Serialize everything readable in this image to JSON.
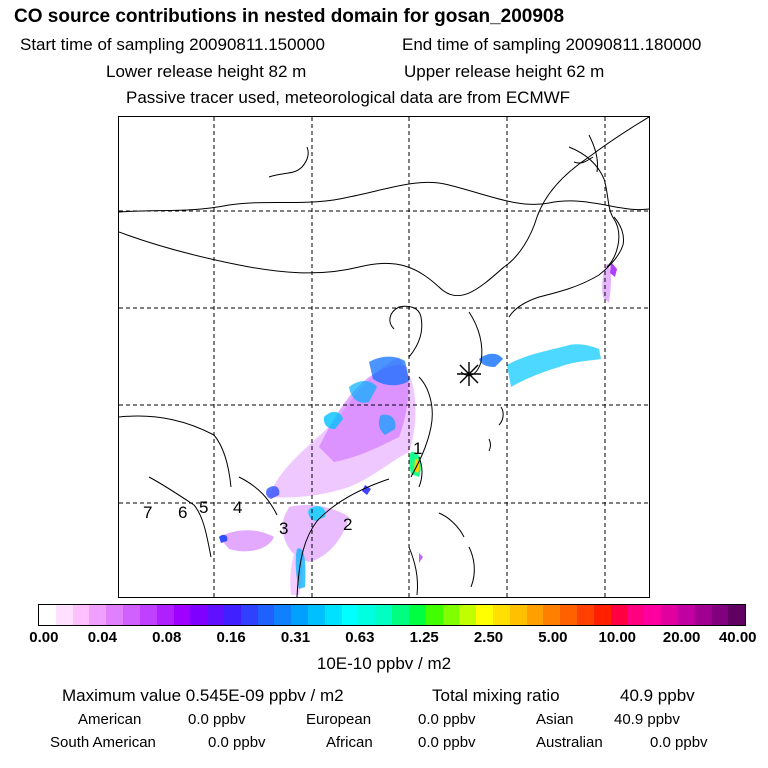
{
  "title": "CO  source contributions in nested domain for gosan_200908",
  "header": {
    "start_label": "Start time of sampling 20090811.150000",
    "end_label": "End time of sampling 20090811.180000",
    "lower_label": "Lower release height   82 m",
    "upper_label": "Upper release height   62 m",
    "info": "Passive tracer used, meteorological data are from ECMWF"
  },
  "map": {
    "marker_icon": "asterisk-receptor-icon",
    "region_labels": [
      "1",
      "2",
      "3",
      "4",
      "5",
      "6",
      "7"
    ]
  },
  "colorbar": {
    "ticks": [
      "0.00",
      "0.04",
      "0.08",
      "0.16",
      "0.31",
      "0.63",
      "1.25",
      "2.50",
      "5.00",
      "10.00",
      "20.00",
      "40.00"
    ],
    "colors": [
      "#ffffff",
      "#ffe0ff",
      "#ffc0ff",
      "#f0a0ff",
      "#e080ff",
      "#d060ff",
      "#c040ff",
      "#b020ff",
      "#a000ff",
      "#8000ff",
      "#6010ff",
      "#4020ff",
      "#3040ff",
      "#2060ff",
      "#1080ff",
      "#00a0ff",
      "#00c0ff",
      "#00e0ff",
      "#00ffff",
      "#00ffe0",
      "#00ffc0",
      "#00ff80",
      "#00ff40",
      "#40ff00",
      "#80ff00",
      "#c0ff00",
      "#ffff00",
      "#ffe000",
      "#ffc000",
      "#ffa000",
      "#ff8000",
      "#ff6000",
      "#ff4000",
      "#ff2000",
      "#ff0040",
      "#ff0080",
      "#ff00a0",
      "#e000a0",
      "#c000a0",
      "#a00090",
      "#800080",
      "#600060"
    ],
    "unit": "10E-10 ppbv / m2"
  },
  "summary": {
    "max_label": "Maximum value  0.545E-09 ppbv / m2",
    "total_label": "Total mixing ratio",
    "total_value": "40.9 ppbv",
    "rows": [
      [
        {
          "label": "American",
          "value": "0.0 ppbv"
        },
        {
          "label": "European",
          "value": "0.0 ppbv"
        },
        {
          "label": "Asian",
          "value": "40.9 ppbv"
        }
      ],
      [
        {
          "label": "South American",
          "value": "0.0 ppbv"
        },
        {
          "label": "African",
          "value": "0.0 ppbv"
        },
        {
          "label": "Australian",
          "value": "0.0 ppbv"
        }
      ]
    ]
  }
}
